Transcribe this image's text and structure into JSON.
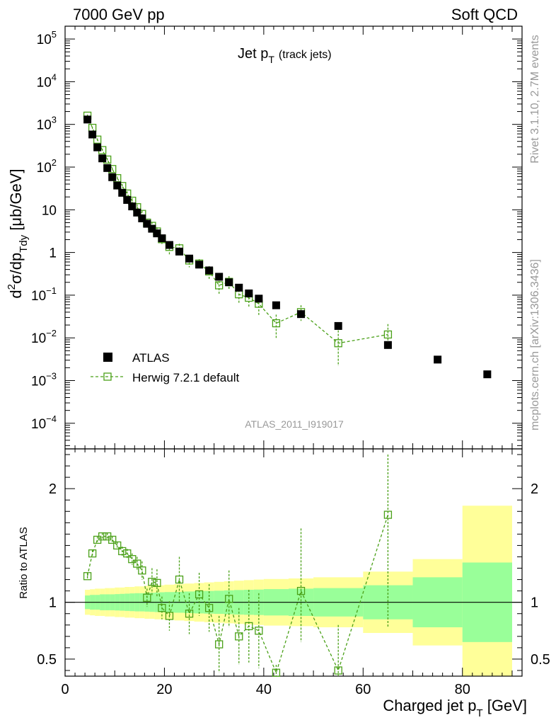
{
  "header": {
    "left": "7000 GeV pp",
    "right": "Soft QCD"
  },
  "side_labels": {
    "top": "Rivet 3.1.10,  2.7M events",
    "bottom": "mcplots.cern.ch [arXiv:1306.3436]"
  },
  "watermark": "ATLAS_2011_I919017",
  "plot_title": {
    "main": "Jet p",
    "sub": "T",
    "extra": "(track jets)"
  },
  "ylabel_main": {
    "d": "d",
    "sup": "2",
    "mid": "σ/dp",
    "sub": "Tdy",
    "unit": " [μb/GeV]"
  },
  "ratio_ylabel": "Ratio to ATLAS",
  "xlabel": {
    "main": "Charged jet p",
    "sub": "T",
    "unit": " [GeV]"
  },
  "legend": {
    "data_label": "ATLAS",
    "mc_label": "Herwig 7.2.1 default"
  },
  "colors": {
    "mc": "#4aa018",
    "band_inner": "#99ff99",
    "band_outer": "#ffff99",
    "data": "#000000",
    "side_text": "#999999"
  },
  "chart_data": {
    "type": "scatter",
    "xlim": [
      0,
      92
    ],
    "x_ticks": [
      0,
      20,
      40,
      60,
      80
    ],
    "main": {
      "ylim_log": [
        -4.6,
        5.3
      ],
      "yscale": "log",
      "y_tick_labels": [
        {
          "exp": -4,
          "base": "10",
          "sup": "−4"
        },
        {
          "exp": -3,
          "base": "10",
          "sup": "−3"
        },
        {
          "exp": -2,
          "base": "10",
          "sup": "−2"
        },
        {
          "exp": -1,
          "base": "10",
          "sup": "−1"
        },
        {
          "exp": 0,
          "base": "1",
          "sup": ""
        },
        {
          "exp": 1,
          "base": "10",
          "sup": ""
        },
        {
          "exp": 2,
          "base": "10",
          "sup": "2"
        },
        {
          "exp": 3,
          "base": "10",
          "sup": "3"
        },
        {
          "exp": 4,
          "base": "10",
          "sup": "4"
        },
        {
          "exp": 5,
          "base": "10",
          "sup": "5"
        }
      ]
    },
    "ratio": {
      "ylim": [
        0.35,
        2.35
      ],
      "yticks": [
        0.5,
        1,
        2
      ],
      "ytick_labels": [
        "0.5",
        "1",
        "2"
      ],
      "bands": [
        {
          "x0": 4,
          "x1": 5,
          "in": 0.06,
          "out": 0.11
        },
        {
          "x0": 5,
          "x1": 6,
          "in": 0.065,
          "out": 0.115
        },
        {
          "x0": 6,
          "x1": 7,
          "in": 0.065,
          "out": 0.12
        },
        {
          "x0": 7,
          "x1": 8,
          "in": 0.07,
          "out": 0.12
        },
        {
          "x0": 8,
          "x1": 9,
          "in": 0.07,
          "out": 0.125
        },
        {
          "x0": 9,
          "x1": 10,
          "in": 0.07,
          "out": 0.125
        },
        {
          "x0": 10,
          "x1": 11,
          "in": 0.072,
          "out": 0.13
        },
        {
          "x0": 11,
          "x1": 12,
          "in": 0.074,
          "out": 0.13
        },
        {
          "x0": 12,
          "x1": 13,
          "in": 0.076,
          "out": 0.135
        },
        {
          "x0": 13,
          "x1": 14,
          "in": 0.078,
          "out": 0.135
        },
        {
          "x0": 14,
          "x1": 15,
          "in": 0.08,
          "out": 0.14
        },
        {
          "x0": 15,
          "x1": 16,
          "in": 0.08,
          "out": 0.14
        },
        {
          "x0": 16,
          "x1": 17,
          "in": 0.082,
          "out": 0.145
        },
        {
          "x0": 17,
          "x1": 18,
          "in": 0.084,
          "out": 0.145
        },
        {
          "x0": 18,
          "x1": 19,
          "in": 0.086,
          "out": 0.15
        },
        {
          "x0": 19,
          "x1": 20,
          "in": 0.088,
          "out": 0.15
        },
        {
          "x0": 20,
          "x1": 22,
          "in": 0.09,
          "out": 0.155
        },
        {
          "x0": 22,
          "x1": 24,
          "in": 0.092,
          "out": 0.16
        },
        {
          "x0": 24,
          "x1": 26,
          "in": 0.095,
          "out": 0.165
        },
        {
          "x0": 26,
          "x1": 28,
          "in": 0.098,
          "out": 0.17
        },
        {
          "x0": 28,
          "x1": 30,
          "in": 0.1,
          "out": 0.175
        },
        {
          "x0": 30,
          "x1": 32,
          "in": 0.102,
          "out": 0.18
        },
        {
          "x0": 32,
          "x1": 34,
          "in": 0.105,
          "out": 0.185
        },
        {
          "x0": 34,
          "x1": 36,
          "in": 0.108,
          "out": 0.19
        },
        {
          "x0": 36,
          "x1": 38,
          "in": 0.11,
          "out": 0.195
        },
        {
          "x0": 38,
          "x1": 40,
          "in": 0.112,
          "out": 0.2
        },
        {
          "x0": 40,
          "x1": 45,
          "in": 0.116,
          "out": 0.205
        },
        {
          "x0": 45,
          "x1": 50,
          "in": 0.12,
          "out": 0.21
        },
        {
          "x0": 50,
          "x1": 60,
          "in": 0.125,
          "out": 0.22
        },
        {
          "x0": 60,
          "x1": 70,
          "in": 0.15,
          "out": 0.27
        },
        {
          "x0": 70,
          "x1": 80,
          "in": 0.22,
          "out": 0.38
        },
        {
          "x0": 80,
          "x1": 90,
          "in": 0.35,
          "out": 0.85
        }
      ]
    },
    "series": [
      {
        "name": "ATLAS",
        "x": [
          4.5,
          5.5,
          6.5,
          7.5,
          8.5,
          9.5,
          10.5,
          11.5,
          12.5,
          13.5,
          14.5,
          15.5,
          16.5,
          17.5,
          18.5,
          19.5,
          21,
          23,
          25,
          27,
          29,
          31,
          33,
          35,
          37,
          39,
          42.5,
          47.5,
          55,
          65,
          75,
          85
        ],
        "y": [
          1300,
          580,
          290,
          160,
          95,
          58,
          37,
          25,
          17,
          12,
          8.6,
          6.3,
          4.7,
          3.6,
          2.8,
          2.15,
          1.5,
          1.05,
          0.72,
          0.52,
          0.38,
          0.27,
          0.2,
          0.15,
          0.11,
          0.083,
          0.058,
          0.036,
          0.019,
          0.0068,
          0.0031,
          0.0014
        ]
      },
      {
        "name": "Herwig 7.2.1 default",
        "x": [
          4.5,
          5.5,
          6.5,
          7.5,
          8.5,
          9.5,
          10.5,
          11.5,
          12.5,
          13.5,
          14.5,
          15.5,
          16.5,
          17.5,
          18.5,
          19.5,
          21,
          23,
          25,
          27,
          29,
          31,
          33,
          35,
          37,
          39,
          42.5,
          47.5,
          55,
          65
        ],
        "y": [
          1600,
          830,
          440,
          250,
          150,
          90,
          55,
          36,
          24,
          16.3,
          11.5,
          8.0,
          5.0,
          4.2,
          3.1,
          2.05,
          1.35,
          1.25,
          0.65,
          0.55,
          0.36,
          0.17,
          0.205,
          0.105,
          0.087,
          0.063,
          0.022,
          0.04,
          0.0075,
          0.012
        ],
        "ylow": [
          1500,
          780,
          410,
          230,
          138,
          82,
          50,
          32,
          21,
          14,
          9.6,
          6.5,
          3.9,
          3.2,
          2.3,
          1.5,
          0.9,
          0.9,
          0.45,
          0.4,
          0.24,
          0.1,
          0.13,
          0.065,
          0.05,
          0.034,
          0.01,
          0.025,
          0.0022,
          0.0055
        ],
        "yhigh": [
          1700,
          880,
          470,
          270,
          162,
          98,
          60,
          40,
          27,
          18.6,
          13.4,
          9.5,
          6.1,
          5.2,
          3.9,
          2.6,
          1.8,
          1.6,
          0.85,
          0.7,
          0.48,
          0.26,
          0.28,
          0.16,
          0.13,
          0.1,
          0.035,
          0.058,
          0.015,
          0.021
        ],
        "ratio": [
          1.23,
          1.43,
          1.55,
          1.58,
          1.58,
          1.55,
          1.5,
          1.45,
          1.43,
          1.38,
          1.34,
          1.28,
          1.04,
          1.18,
          1.17,
          0.95,
          0.88,
          1.2,
          0.9,
          1.07,
          0.95,
          0.63,
          1.03,
          0.7,
          0.79,
          0.75,
          0.38,
          1.1,
          0.4,
          1.77
        ],
        "ratio_low": [
          1.2,
          1.4,
          1.52,
          1.55,
          1.55,
          1.52,
          1.47,
          1.41,
          1.39,
          1.33,
          1.28,
          1.2,
          0.96,
          1.06,
          1.05,
          0.85,
          0.75,
          1.0,
          0.72,
          0.88,
          0.74,
          0.38,
          0.78,
          0.45,
          0.47,
          0.42,
          0.35,
          0.65,
          0.35,
          0.78
        ],
        "ratio_high": [
          1.26,
          1.46,
          1.58,
          1.61,
          1.61,
          1.58,
          1.53,
          1.49,
          1.47,
          1.43,
          1.4,
          1.36,
          1.12,
          1.3,
          1.29,
          1.05,
          1.01,
          1.4,
          1.08,
          1.26,
          1.16,
          0.88,
          1.28,
          0.95,
          1.11,
          1.08,
          0.45,
          1.65,
          0.8,
          2.3
        ]
      }
    ]
  }
}
